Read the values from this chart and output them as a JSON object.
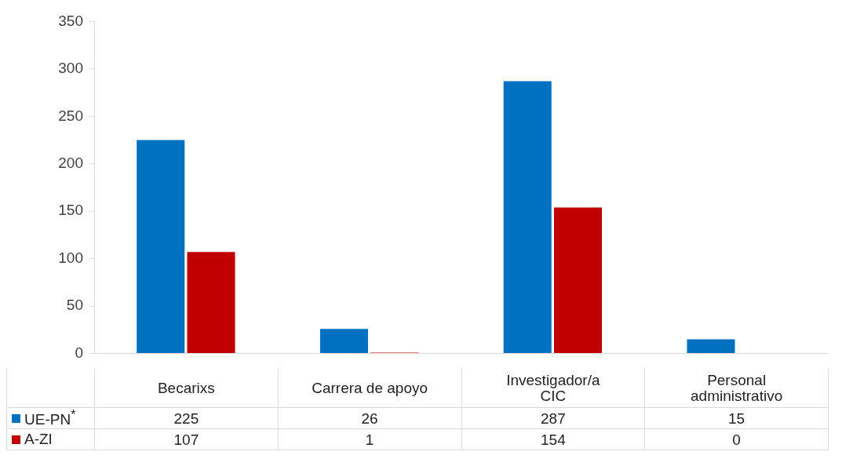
{
  "chart_data": {
    "type": "bar",
    "categories": [
      "Becarixs",
      "Carrera de apoyo",
      "Investigador/a CIC",
      "Personal administrativo"
    ],
    "series": [
      {
        "name": "UE-PN$^{*}$",
        "color": "#0070c0",
        "values": [
          225,
          26,
          287,
          15
        ]
      },
      {
        "name": "A-ZI",
        "color": "#c00000",
        "values": [
          107,
          1,
          154,
          0
        ]
      }
    ],
    "ylim": [
      0,
      350
    ],
    "yticks": [
      0,
      50,
      100,
      150,
      200,
      250,
      300,
      350
    ],
    "grid": false,
    "legend": "bottom",
    "data_labels": true
  }
}
